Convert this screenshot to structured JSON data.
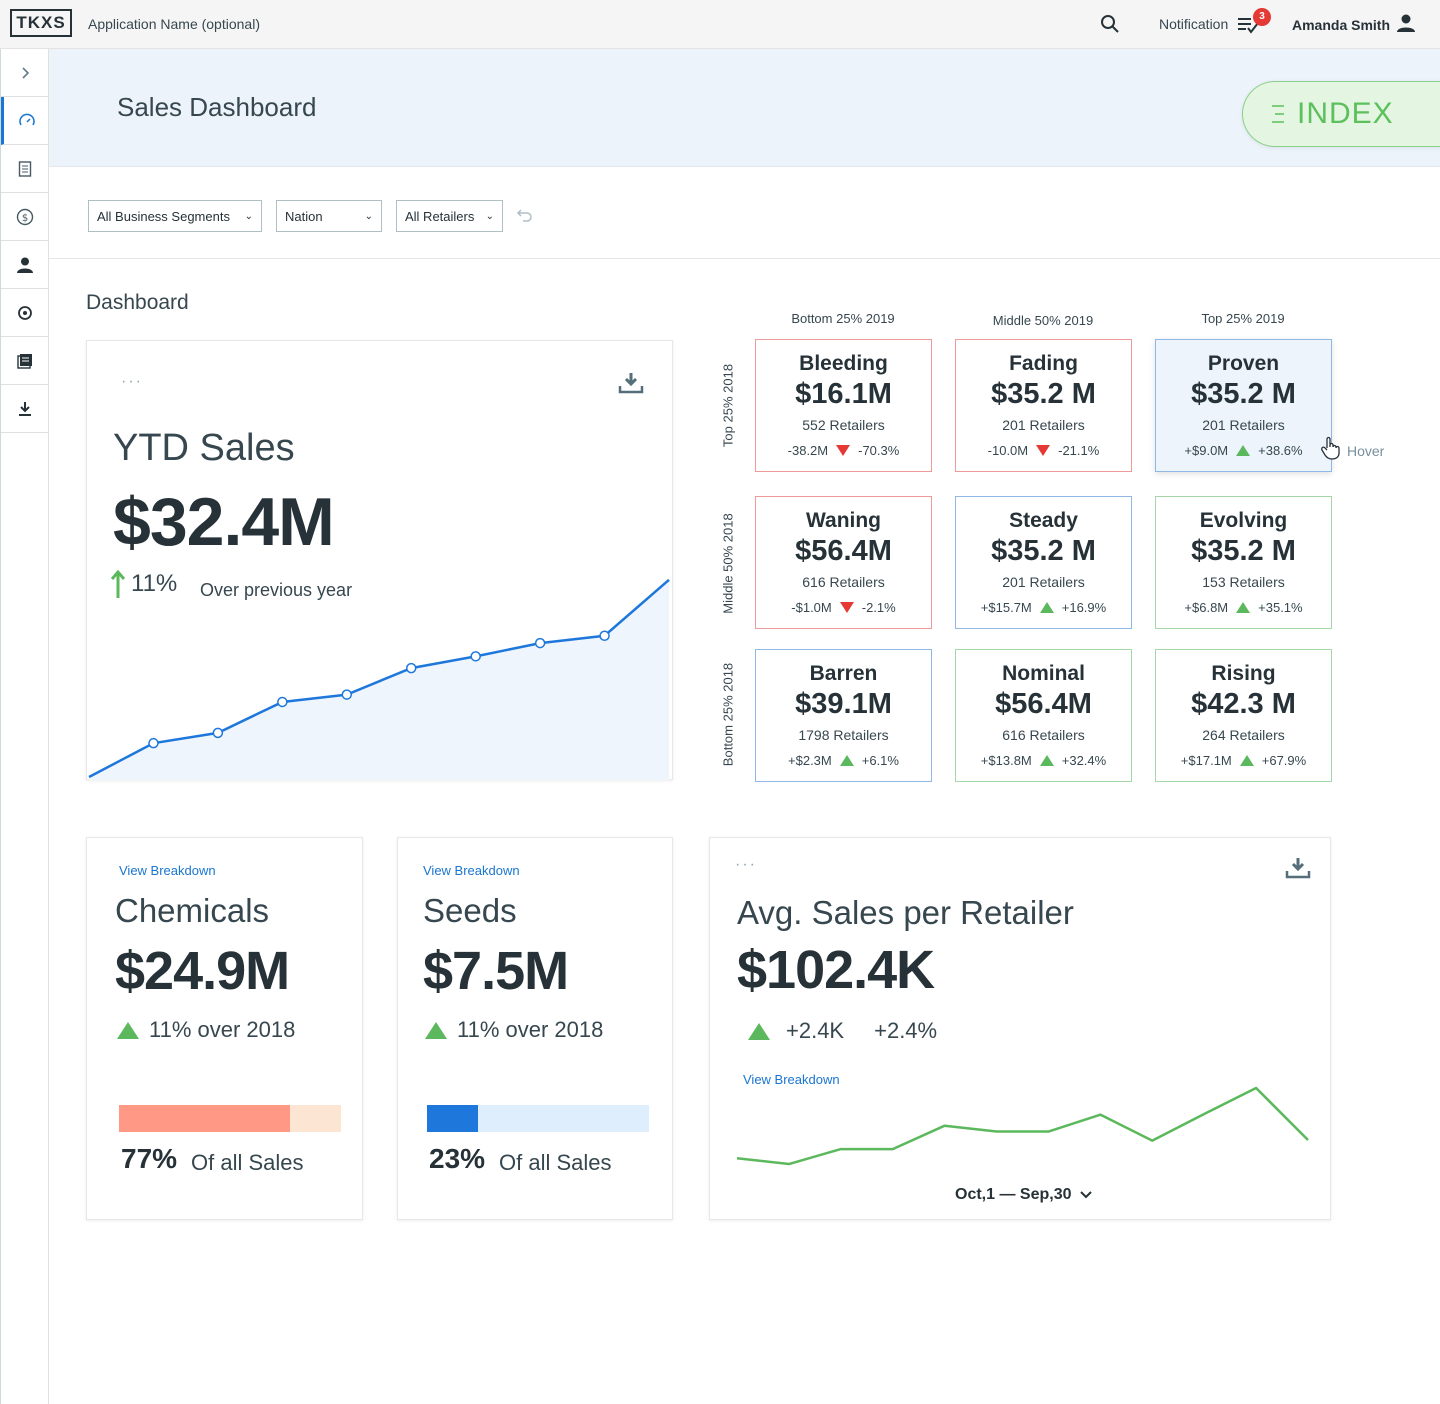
{
  "topbar": {
    "logo": "TKXS",
    "app_name": "Application Name (optional)",
    "notification_label": "Notification",
    "notification_count": "3",
    "user_name": "Amanda Smith"
  },
  "sidebar": {
    "items": [
      "expand-chevron-icon",
      "speedometer-icon",
      "document-icon",
      "dollar-icon",
      "person-icon",
      "settings-icon",
      "reports-icon",
      "download-icon"
    ]
  },
  "header": {
    "title": "Sales Dashboard",
    "index_label": "INDEX"
  },
  "filters": {
    "segments": "All Business Segments",
    "region": "Nation",
    "retailers": "All Retailers"
  },
  "dashboard": {
    "title": "Dashboard",
    "ytd": {
      "title": "YTD Sales",
      "value": "$32.4M",
      "growth": "11%",
      "growth_note": "Over previous year"
    },
    "matrix": {
      "columns": [
        "Bottom 25% 2019",
        "Middle 50% 2019",
        "Top 25% 2019"
      ],
      "rows": [
        "Top 25% 2018",
        "Middle 50% 2018",
        "Bottom 25% 2018"
      ],
      "tiles": [
        {
          "name": "Bleeding",
          "value": "$16.1M",
          "count": "552 Retailers",
          "abs": "-38.2M",
          "pct": "-70.3%",
          "trend": "down"
        },
        {
          "name": "Fading",
          "value": "$35.2 M",
          "count": "201 Retailers",
          "abs": "-10.0M",
          "pct": "-21.1%",
          "trend": "down"
        },
        {
          "name": "Proven",
          "value": "$35.2 M",
          "count": "201 Retailers",
          "abs": "+$9.0M",
          "pct": "+38.6%",
          "trend": "up"
        },
        {
          "name": "Waning",
          "value": "$56.4M",
          "count": "616 Retailers",
          "abs": "-$1.0M",
          "pct": "-2.1%",
          "trend": "down"
        },
        {
          "name": "Steady",
          "value": "$35.2 M",
          "count": "201 Retailers",
          "abs": "+$15.7M",
          "pct": "+16.9%",
          "trend": "up"
        },
        {
          "name": "Evolving",
          "value": "$35.2 M",
          "count": "153 Retailers",
          "abs": "+$6.8M",
          "pct": "+35.1%",
          "trend": "up"
        },
        {
          "name": "Barren",
          "value": "$39.1M",
          "count": "1798 Retailers",
          "abs": "+$2.3M",
          "pct": "+6.1%",
          "trend": "up"
        },
        {
          "name": "Nominal",
          "value": "$56.4M",
          "count": "616 Retailers",
          "abs": "+$13.8M",
          "pct": "+32.4%",
          "trend": "up"
        },
        {
          "name": "Rising",
          "value": "$42.3 M",
          "count": "264 Retailers",
          "abs": "+$17.1M",
          "pct": "+67.9%",
          "trend": "up"
        }
      ],
      "hover_label": "Hover"
    },
    "chemicals": {
      "link": "View Breakdown",
      "name": "Chemicals",
      "value": "$24.9M",
      "growth": "11% over 2018",
      "share_pct": "77%",
      "share_fraction": 0.77,
      "share_label": "Of all Sales"
    },
    "seeds": {
      "link": "View Breakdown",
      "name": "Seeds",
      "value": "$7.5M",
      "growth": "11% over 2018",
      "share_pct": "23%",
      "share_fraction": 0.23,
      "share_label": "Of all Sales"
    },
    "avg": {
      "title": "Avg. Sales per Retailer",
      "value": "$102.4K",
      "abs": "+2.4K",
      "pct": "+2.4%",
      "link": "View Breakdown",
      "date_range": "Oct,1 — Sep,30"
    }
  },
  "colors": {
    "accent_blue": "#1976d2",
    "up_green": "#5cb85c",
    "down_red": "#e53935",
    "chemicals_bar": "#ff9985",
    "chemicals_track": "#fde5d4",
    "seeds_bar": "#1e78dc",
    "seeds_track": "#deeefc"
  },
  "chart_data": [
    {
      "type": "area",
      "name": "YTD Sales trend",
      "x": [
        0,
        1,
        2,
        3,
        4,
        5,
        6,
        7,
        8,
        9
      ],
      "values": [
        0,
        2.3,
        3.0,
        5.1,
        5.6,
        7.4,
        8.2,
        9.1,
        9.6,
        13.4
      ]
    },
    {
      "type": "line",
      "name": "Avg. Sales per Retailer trend",
      "x": [
        0,
        1,
        2,
        3,
        4,
        5,
        6,
        7,
        8,
        9,
        10,
        11
      ],
      "values": [
        1.2,
        0.3,
        2.6,
        2.6,
        6.2,
        5.3,
        5.3,
        7.9,
        3.9,
        8.0,
        12.0,
        4.0
      ]
    }
  ]
}
